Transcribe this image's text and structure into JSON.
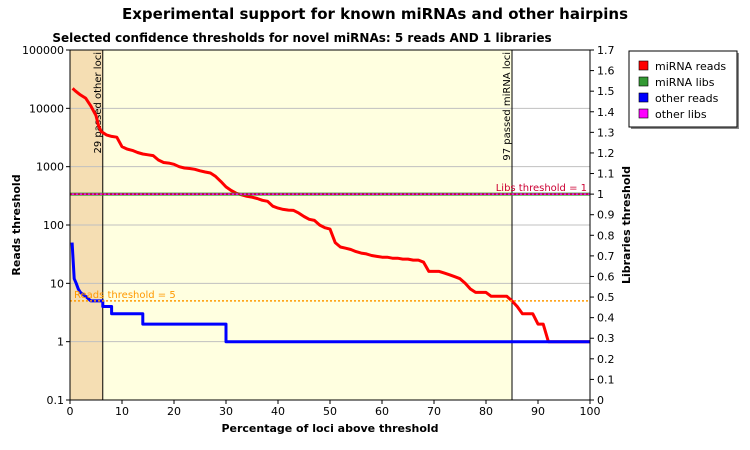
{
  "chart_data": {
    "type": "line",
    "title": "Experimental support for known miRNAs and other hairpins",
    "subtitle": "Selected confidence thresholds for novel miRNAs: 5 reads AND 1 libraries",
    "xlabel": "Percentage of loci above threshold",
    "ylabel_left": "Reads threshold",
    "ylabel_right": "Libraries threshold",
    "xlim": [
      0,
      100
    ],
    "ylim_left": [
      0.1,
      100000
    ],
    "ylim_right": [
      0,
      1.7
    ],
    "left_scale": "log",
    "x_ticks": [
      "0",
      "10",
      "20",
      "30",
      "40",
      "50",
      "60",
      "70",
      "80",
      "90",
      "100"
    ],
    "y_left_ticks": [
      "0.1",
      "1",
      "10",
      "100",
      "1000",
      "10000",
      "100000"
    ],
    "y_right_ticks": [
      "0",
      "0.1",
      "0.2",
      "0.3",
      "0.4",
      "0.5",
      "0.6",
      "0.7",
      "0.8",
      "0.9",
      "1",
      "1.1",
      "1.2",
      "1.3",
      "1.4",
      "1.5",
      "1.6",
      "1.7"
    ],
    "shaded_regions": [
      {
        "x_range": [
          0,
          6.3
        ],
        "color": "#f5deb3"
      },
      {
        "x_range": [
          6.3,
          85
        ],
        "color": "#ffffe0"
      }
    ],
    "vertical_markers": [
      {
        "x": 6.3,
        "label": "29 passed other loci"
      },
      {
        "x": 85,
        "label": "97 passed miRNA loci"
      }
    ],
    "threshold_lines": [
      {
        "axis": "left",
        "value": 5,
        "label": "Reads threshold = 5",
        "color": "#ff9900"
      },
      {
        "axis": "right",
        "value": 1,
        "label": "Libs threshold = 1",
        "color": "#cc0033"
      }
    ],
    "series": [
      {
        "name": "miRNA reads",
        "color": "#ff0000",
        "axis": "left",
        "points": [
          [
            0.5,
            22000
          ],
          [
            1,
            20000
          ],
          [
            2,
            17000
          ],
          [
            3,
            15000
          ],
          [
            4,
            11000
          ],
          [
            5,
            7500
          ],
          [
            5.5,
            5000
          ],
          [
            6,
            4000
          ],
          [
            7,
            3500
          ],
          [
            8,
            3300
          ],
          [
            9,
            3200
          ],
          [
            10,
            2200
          ],
          [
            11,
            2000
          ],
          [
            12,
            1900
          ],
          [
            13,
            1750
          ],
          [
            14,
            1650
          ],
          [
            15,
            1600
          ],
          [
            16,
            1550
          ],
          [
            17,
            1300
          ],
          [
            18,
            1180
          ],
          [
            19,
            1150
          ],
          [
            20,
            1100
          ],
          [
            21,
            1000
          ],
          [
            22,
            950
          ],
          [
            23,
            930
          ],
          [
            24,
            900
          ],
          [
            25,
            850
          ],
          [
            26,
            810
          ],
          [
            27,
            780
          ],
          [
            28,
            680
          ],
          [
            29,
            560
          ],
          [
            30,
            450
          ],
          [
            31,
            390
          ],
          [
            32,
            350
          ],
          [
            33,
            330
          ],
          [
            34,
            310
          ],
          [
            35,
            300
          ],
          [
            36,
            285
          ],
          [
            37,
            265
          ],
          [
            38,
            255
          ],
          [
            39,
            210
          ],
          [
            40,
            195
          ],
          [
            41,
            185
          ],
          [
            42,
            180
          ],
          [
            43,
            178
          ],
          [
            44,
            160
          ],
          [
            45,
            140
          ],
          [
            46,
            125
          ],
          [
            47,
            120
          ],
          [
            48,
            100
          ],
          [
            49,
            90
          ],
          [
            50,
            85
          ],
          [
            51,
            50
          ],
          [
            52,
            42
          ],
          [
            53,
            40
          ],
          [
            54,
            38
          ],
          [
            55,
            35
          ],
          [
            56,
            33
          ],
          [
            57,
            32
          ],
          [
            58,
            30
          ],
          [
            59,
            29
          ],
          [
            60,
            28
          ],
          [
            61,
            28
          ],
          [
            62,
            27
          ],
          [
            63,
            27
          ],
          [
            64,
            26
          ],
          [
            65,
            26
          ],
          [
            66,
            25
          ],
          [
            67,
            25
          ],
          [
            68,
            23
          ],
          [
            69,
            16
          ],
          [
            70,
            16
          ],
          [
            71,
            16
          ],
          [
            72,
            15
          ],
          [
            73,
            14
          ],
          [
            74,
            13
          ],
          [
            75,
            12
          ],
          [
            76,
            10
          ],
          [
            77,
            8
          ],
          [
            78,
            7
          ],
          [
            79,
            7
          ],
          [
            80,
            7
          ],
          [
            81,
            6
          ],
          [
            82,
            6
          ],
          [
            83,
            6
          ],
          [
            84,
            6
          ],
          [
            85,
            5
          ],
          [
            86,
            4
          ],
          [
            87,
            3
          ],
          [
            88,
            3
          ],
          [
            89,
            3
          ],
          [
            90,
            2
          ],
          [
            91,
            2
          ],
          [
            92,
            1
          ],
          [
            100,
            1
          ]
        ]
      },
      {
        "name": "miRNA libs",
        "color": "#339933",
        "axis": "right",
        "points": [
          [
            0,
            1
          ],
          [
            100,
            1
          ]
        ]
      },
      {
        "name": "other reads",
        "color": "#0000ff",
        "axis": "left",
        "points": [
          [
            0.4,
            50
          ],
          [
            0.8,
            12
          ],
          [
            1.2,
            10
          ],
          [
            1.6,
            8
          ],
          [
            2,
            7
          ],
          [
            3,
            6
          ],
          [
            4,
            5
          ],
          [
            5,
            5
          ],
          [
            6,
            5
          ],
          [
            6.3,
            4
          ],
          [
            7,
            4
          ],
          [
            8,
            3
          ],
          [
            14,
            3
          ],
          [
            14,
            2
          ],
          [
            30,
            2
          ],
          [
            30,
            1
          ],
          [
            100,
            1
          ]
        ]
      },
      {
        "name": "other libs",
        "color": "#ff00ff",
        "axis": "right",
        "points": [
          [
            0,
            1
          ],
          [
            100,
            1
          ]
        ]
      }
    ],
    "legend_position": "right"
  }
}
